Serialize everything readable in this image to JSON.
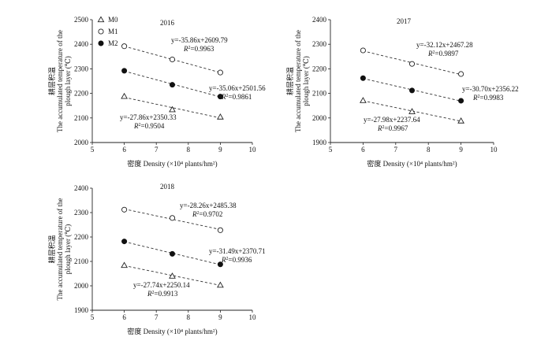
{
  "chart_data": [
    {
      "type": "scatter",
      "title": "2016",
      "xlabel_cn": "密度",
      "xlabel": "Density (×10⁴ plants/hm²)",
      "ylabel_cn": "耕层积温",
      "ylabel_line1": "The accumulated temperature of the",
      "ylabel_line2": "plough layer (℃)",
      "xlim": [
        5,
        10
      ],
      "ylim": [
        2000,
        2500
      ],
      "xticks": [
        "5",
        "6",
        "7",
        "8",
        "9",
        "10"
      ],
      "yticks": [
        "2000",
        "2100",
        "2200",
        "2300",
        "2400",
        "2500"
      ],
      "legend": [
        {
          "name": "M0",
          "marker": "triangle"
        },
        {
          "name": "M1",
          "marker": "open-circle"
        },
        {
          "name": "M2",
          "marker": "filled-circle"
        }
      ],
      "x": [
        6,
        7.5,
        9
      ],
      "series": [
        {
          "name": "M0",
          "marker": "triangle",
          "values": [
            2188,
            2134,
            2104
          ],
          "equation": "y=-27.86x+2350.33",
          "r2_label": "R",
          "r2_value": "=0.9504"
        },
        {
          "name": "M1",
          "marker": "open-circle",
          "values": [
            2392,
            2338,
            2285
          ],
          "equation": "y=-35.86x+2609.79",
          "r2_label": "R",
          "r2_value": "=0.9963"
        },
        {
          "name": "M2",
          "marker": "filled-circle",
          "values": [
            2292,
            2235,
            2187
          ],
          "equation": "y=-35.06x+2501.56",
          "r2_label": "R",
          "r2_value": "=0.9861"
        }
      ]
    },
    {
      "type": "scatter",
      "title": "2017",
      "xlabel_cn": "密度",
      "xlabel": "Density (×10⁴ plants/hm²)",
      "ylabel_cn": "耕层积温",
      "ylabel_line1": "The accumulated temperature of the",
      "ylabel_line2": "plough layer (℃)",
      "xlim": [
        5,
        10
      ],
      "ylim": [
        1900,
        2400
      ],
      "xticks": [
        "5",
        "6",
        "7",
        "8",
        "9",
        "10"
      ],
      "yticks": [
        "1900",
        "2000",
        "2100",
        "2200",
        "2300",
        "2400"
      ],
      "x": [
        6,
        7.5,
        9
      ],
      "series": [
        {
          "name": "M0",
          "marker": "triangle",
          "values": [
            2071,
            2026,
            1988
          ],
          "equation": "y=-27.98x+2237.64",
          "r2_label": "R",
          "r2_value": "=0.9967"
        },
        {
          "name": "M1",
          "marker": "open-circle",
          "values": [
            2275,
            2220,
            2179
          ],
          "equation": "y=-32.12x+2467.28",
          "r2_label": "R",
          "r2_value": "=0.9897"
        },
        {
          "name": "M2",
          "marker": "filled-circle",
          "values": [
            2162,
            2112,
            2070
          ],
          "equation": "y=-30.70x+2356.22",
          "r2_label": "R",
          "r2_value": "=0.9983"
        }
      ]
    },
    {
      "type": "scatter",
      "title": "2018",
      "xlabel_cn": "密度",
      "xlabel": "Density (×10⁴ plants/hm²)",
      "ylabel_cn": "耕层积温",
      "ylabel_line1": "The accumulated temperature of the",
      "ylabel_line2": "plough layer (℃)",
      "xlim": [
        5,
        10
      ],
      "ylim": [
        1900,
        2400
      ],
      "xticks": [
        "5",
        "6",
        "7",
        "8",
        "9",
        "10"
      ],
      "yticks": [
        "1900",
        "2000",
        "2100",
        "2200",
        "2300",
        "2400"
      ],
      "x": [
        6,
        7.5,
        9
      ],
      "series": [
        {
          "name": "M0",
          "marker": "triangle",
          "values": [
            2084,
            2040,
            2003
          ],
          "equation": "y=-27.74x+2250.14",
          "r2_label": "R",
          "r2_value": "=0.9913"
        },
        {
          "name": "M1",
          "marker": "open-circle",
          "values": [
            2312,
            2278,
            2228
          ],
          "equation": "y=-28.26x+2485.38",
          "r2_label": "R",
          "r2_value": "=0.9702"
        },
        {
          "name": "M2",
          "marker": "filled-circle",
          "values": [
            2182,
            2131,
            2088
          ],
          "equation": "y=-31.49x+2370.71",
          "r2_label": "R",
          "r2_value": "=0.9936"
        }
      ]
    }
  ]
}
